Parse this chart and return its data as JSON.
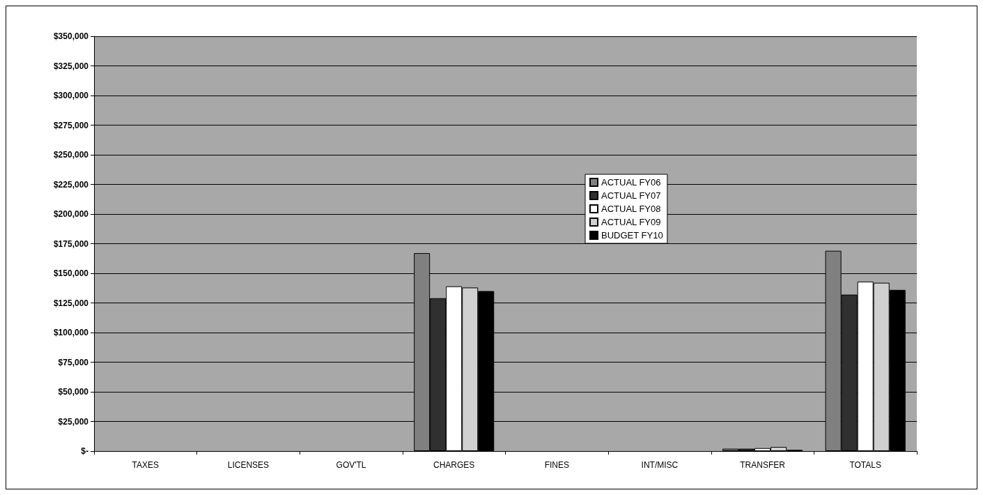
{
  "chart_data": {
    "type": "bar",
    "categories": [
      "TAXES",
      "LICENSES",
      "GOV'TL",
      "CHARGES",
      "FINES",
      "INT/MISC",
      "TRANSFER",
      "TOTALS"
    ],
    "series": [
      {
        "name": "ACTUAL FY06",
        "color": "#808080",
        "values": [
          null,
          null,
          null,
          167000,
          null,
          null,
          2000,
          169000
        ]
      },
      {
        "name": "ACTUAL FY07",
        "color": "#303030",
        "values": [
          null,
          null,
          null,
          129000,
          null,
          null,
          2000,
          132000
        ]
      },
      {
        "name": "ACTUAL FY08",
        "color": "#ffffff",
        "values": [
          null,
          null,
          null,
          139000,
          null,
          null,
          2500,
          143000
        ]
      },
      {
        "name": "ACTUAL FY09",
        "color": "#d0d0d0",
        "values": [
          null,
          null,
          null,
          138000,
          null,
          null,
          3500,
          142000
        ]
      },
      {
        "name": "BUDGET FY10",
        "color": "#000000",
        "values": [
          null,
          null,
          null,
          135000,
          null,
          null,
          1000,
          136000
        ]
      }
    ],
    "ylim": [
      0,
      350000
    ],
    "yticks": [
      {
        "value": 0,
        "label": "$-"
      },
      {
        "value": 25000,
        "label": "$25,000"
      },
      {
        "value": 50000,
        "label": "$50,000"
      },
      {
        "value": 75000,
        "label": "$75,000"
      },
      {
        "value": 100000,
        "label": "$100,000"
      },
      {
        "value": 125000,
        "label": "$125,000"
      },
      {
        "value": 150000,
        "label": "$150,000"
      },
      {
        "value": 175000,
        "label": "$175,000"
      },
      {
        "value": 200000,
        "label": "$200,000"
      },
      {
        "value": 225000,
        "label": "$225,000"
      },
      {
        "value": 250000,
        "label": "$250,000"
      },
      {
        "value": 275000,
        "label": "$275,000"
      },
      {
        "value": 300000,
        "label": "$300,000"
      },
      {
        "value": 325000,
        "label": "$325,000"
      },
      {
        "value": 350000,
        "label": "$350,000"
      }
    ],
    "grid": "y",
    "legend": "right"
  }
}
